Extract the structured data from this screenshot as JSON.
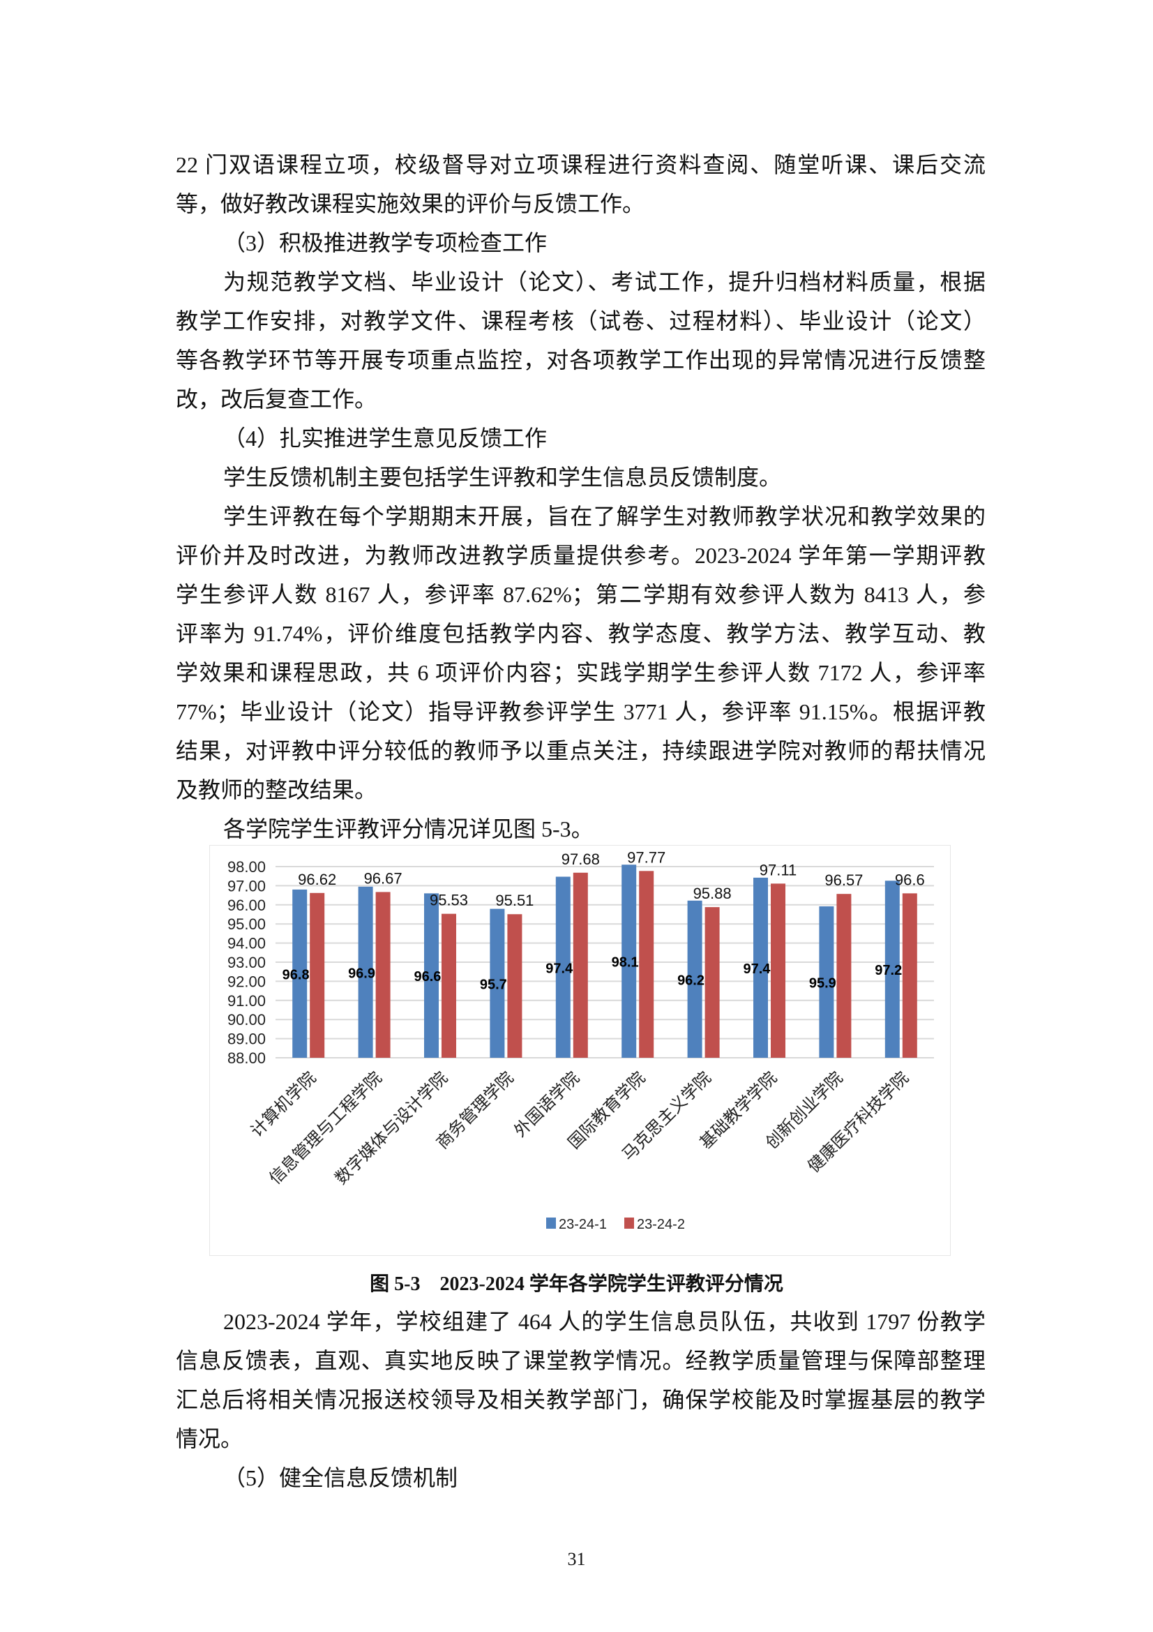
{
  "body_top": {
    "paragraphs": [
      {
        "lines": [
          "22 门双语课程立项，校级督导对立项课程进行资料查阅、随堂听课、课后交流",
          "等，做好教改课程实施效果的评价与反馈工作。"
        ]
      },
      {
        "lines": [
          "（3）积极推进教学专项检查工作"
        ]
      },
      {
        "lines": [
          "为规范教学文档、毕业设计（论文）、考试工作，提升归档材料质量，根据",
          "教学工作安排，对教学文件、课程考核（试卷、过程材料）、毕业设计（论文）",
          "等各教学环节等开展专项重点监控，对各项教学工作出现的异常情况进行反馈整",
          "改，改后复查工作。"
        ]
      },
      {
        "lines": [
          "（4）扎实推进学生意见反馈工作"
        ]
      },
      {
        "lines": [
          "学生反馈机制主要包括学生评教和学生信息员反馈制度。"
        ]
      },
      {
        "lines": [
          "学生评教在每个学期期末开展，旨在了解学生对教师教学状况和教学效果的",
          "评价并及时改进，为教师改进教学质量提供参考。2023-2024 学年第一学期评教",
          "学生参评人数 8167 人，参评率 87.62%；第二学期有效参评人数为 8413 人，参",
          "评率为 91.74%，评价维度包括教学内容、教学态度、教学方法、教学互动、教",
          "学效果和课程思政，共 6 项评价内容；实践学期学生参评人数 7172 人，参评率",
          "77%；毕业设计（论文）指导评教参评学生 3771 人，参评率 91.15%。根据评教",
          "结果，对评教中评分较低的教师予以重点关注，持续跟进学院对教师的帮扶情况",
          "及教师的整改结果。"
        ]
      },
      {
        "lines": [
          "各学院学生评教评分情况详见图 5-3。"
        ]
      }
    ]
  },
  "figure_caption": "图 5-3　2023-2024 学年各学院学生评教评分情况",
  "body_bottom": {
    "paragraphs": [
      {
        "lines": [
          "2023-2024 学年，学校组建了 464 人的学生信息员队伍，共收到 1797 份教学",
          "信息反馈表，直观、真实地反映了课堂教学情况。经教学质量管理与保障部整理",
          "汇总后将相关情况报送校领导及相关教学部门，确保学校能及时掌握基层的教学",
          "情况。"
        ]
      },
      {
        "lines": [
          "（5）健全信息反馈机制"
        ]
      }
    ]
  },
  "page_number": "31",
  "chart_data": {
    "type": "bar",
    "categories": [
      "计算机学院",
      "信息管理与工程学院",
      "数字媒体与设计学院",
      "商务管理学院",
      "外国语学院",
      "国际教育学院",
      "马克思主义学院",
      "基础教学学院",
      "创新创业学院",
      "健康医疗科技学院"
    ],
    "series": [
      {
        "name": "23-24-1",
        "color": "#4F81BD",
        "values": [
          96.8,
          96.95,
          96.6,
          95.79,
          97.47,
          98.1,
          96.22,
          97.42,
          95.92,
          97.26
        ],
        "labels": [
          "96.80",
          "96.95",
          "96.60",
          "95.79",
          "97.47",
          "98.10",
          "96.22",
          "97.42",
          "95.92",
          "97.26"
        ]
      },
      {
        "name": "23-24-2",
        "color": "#C0504D",
        "values": [
          96.62,
          96.67,
          95.53,
          95.51,
          97.68,
          97.77,
          95.88,
          97.11,
          96.57,
          96.6
        ],
        "labels": [
          "96.62",
          "96.67",
          "95.53",
          "95.51",
          "97.68",
          "97.77",
          "95.88",
          "97.11",
          "96.57",
          "96.6"
        ]
      }
    ],
    "ylim": [
      88,
      98
    ],
    "yticks": [
      "88.00",
      "89.00",
      "90.00",
      "91.00",
      "92.00",
      "93.00",
      "94.00",
      "95.00",
      "96.00",
      "97.00",
      "98.00"
    ],
    "grid": true,
    "legend": "bottom"
  }
}
